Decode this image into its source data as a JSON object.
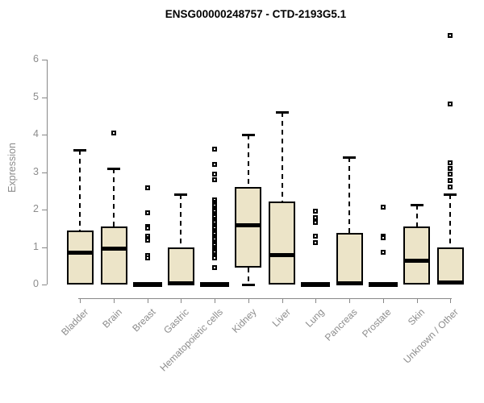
{
  "title": "ENSG00000248757 - CTD-2193G5.1",
  "chart_data": {
    "type": "box",
    "title": "ENSG00000248757 - CTD-2193G5.1",
    "xlabel": "",
    "ylabel": "Expression",
    "ylim": [
      0,
      6.8
    ],
    "y_ticks": [
      0,
      1,
      2,
      3,
      4,
      5,
      6
    ],
    "y_tick_labels": [
      "0",
      "1",
      "2",
      "3",
      "4",
      "5",
      "6"
    ],
    "grid": false,
    "legend": "none",
    "box_fill_color": "#ece4c8",
    "box_border_color": "#000000",
    "axis_color": "#888888",
    "axis_text_color": "#8c8c8c",
    "categories": [
      "Bladder",
      "Brain",
      "Breast",
      "Gastric",
      "Hematopoietic cells",
      "Kidney",
      "Liver",
      "Lung",
      "Pancreas",
      "Prostate",
      "Skin",
      "Unknown / Other"
    ],
    "boxes": [
      {
        "name": "Bladder",
        "q1": 0,
        "median": 0.85,
        "q3": 1.45,
        "whisker_low": 0,
        "whisker_high": 3.6,
        "outliers": []
      },
      {
        "name": "Brain",
        "q1": 0,
        "median": 0.95,
        "q3": 1.55,
        "whisker_low": 0,
        "whisker_high": 3.1,
        "outliers": [
          4.05
        ]
      },
      {
        "name": "Breast",
        "q1": 0,
        "median": 0,
        "q3": 0,
        "whisker_low": 0,
        "whisker_high": 0,
        "flat": true,
        "outliers": [
          2.58,
          1.92,
          1.55,
          1.5,
          1.28,
          1.22,
          1.18,
          0.78,
          0.72
        ]
      },
      {
        "name": "Gastric",
        "q1": 0,
        "median": 0.03,
        "q3": 1.0,
        "whisker_low": 0,
        "whisker_high": 2.4,
        "outliers": []
      },
      {
        "name": "Hematopoietic cells",
        "q1": 0,
        "median": 0,
        "q3": 0,
        "whisker_low": 0,
        "whisker_high": 0,
        "flat": true,
        "outliers": [
          3.62,
          3.2,
          2.95,
          2.8,
          2.25,
          2.2,
          2.15,
          2.1,
          2.05,
          2.0,
          1.95,
          1.9,
          1.85,
          1.8,
          1.75,
          1.7,
          1.65,
          1.6,
          1.55,
          1.5,
          1.45,
          1.4,
          1.35,
          1.3,
          1.25,
          1.2,
          1.15,
          1.1,
          1.05,
          1.0,
          0.95,
          0.9,
          0.85,
          0.8,
          0.75,
          0.7,
          0.45
        ]
      },
      {
        "name": "Kidney",
        "q1": 0.45,
        "median": 1.58,
        "q3": 2.6,
        "whisker_low": 0,
        "whisker_high": 4.0,
        "outliers": []
      },
      {
        "name": "Liver",
        "q1": 0,
        "median": 0.78,
        "q3": 2.22,
        "whisker_low": 0,
        "whisker_high": 4.6,
        "outliers": []
      },
      {
        "name": "Lung",
        "q1": 0,
        "median": 0,
        "q3": 0,
        "whisker_low": 0,
        "whisker_high": 0,
        "flat": true,
        "outliers": [
          1.95,
          1.78,
          1.65,
          1.3,
          1.12
        ]
      },
      {
        "name": "Pancreas",
        "q1": 0,
        "median": 0.03,
        "q3": 1.38,
        "whisker_low": 0,
        "whisker_high": 3.4,
        "outliers": []
      },
      {
        "name": "Prostate",
        "q1": 0,
        "median": 0,
        "q3": 0,
        "whisker_low": 0,
        "whisker_high": 0,
        "flat": true,
        "outliers": [
          2.07,
          1.3,
          1.25,
          0.86
        ]
      },
      {
        "name": "Skin",
        "q1": 0,
        "median": 0.63,
        "q3": 1.55,
        "whisker_low": 0,
        "whisker_high": 2.12,
        "outliers": []
      },
      {
        "name": "Unknown / Other",
        "q1": 0,
        "median": 0.05,
        "q3": 1.0,
        "whisker_low": 0,
        "whisker_high": 2.4,
        "outliers": [
          6.65,
          4.82,
          3.25,
          3.1,
          2.95,
          2.78,
          2.6
        ]
      }
    ]
  }
}
